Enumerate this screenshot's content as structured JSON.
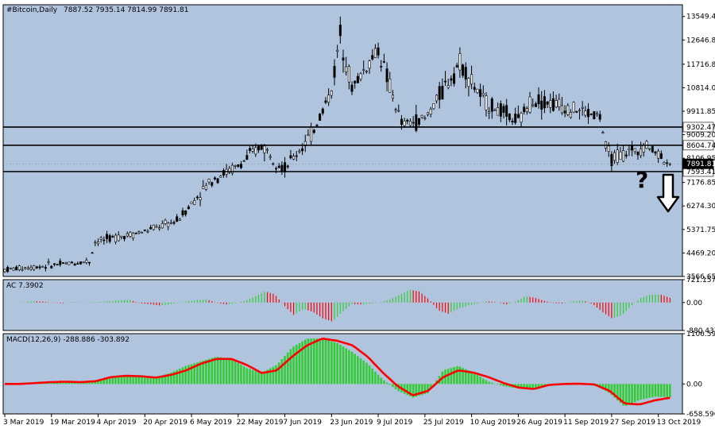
{
  "header": {
    "symbol": "#Bitcoin,Daily",
    "ohlc": "7887.52 7935.14 7814.99 7891.81"
  },
  "colors": {
    "background": "#b0c4de",
    "frame": "#ffffff",
    "candle": "#000000",
    "ac_up": "#32cd32",
    "ac_down": "#ff0000",
    "macd_hist": "#32cd32",
    "macd_signal": "#ff0000"
  },
  "annotations": {
    "question": "?",
    "arrow": "down-arrow-icon"
  },
  "chart_data": [
    {
      "type": "candlestick",
      "title": "#Bitcoin,Daily",
      "ohlc_label": "7887.52 7935.14 7814.99 7891.81",
      "ylim": [
        3566.65,
        13999
      ],
      "y_ticks": [
        "13549.40",
        "12646.85",
        "11716.85",
        "10814.04",
        "9911.85",
        "9009.20",
        "8106.95",
        "7176.85",
        "6274.30",
        "5371.75",
        "4469.20",
        "3566.65"
      ],
      "x_ticks": [
        "3 Mar 2019",
        "19 Mar 2019",
        "4 Apr 2019",
        "20 Apr 2019",
        "6 May 2019",
        "22 May 2019",
        "7 Jun 2019",
        "23 Jun 2019",
        "9 Jul 2019",
        "25 Jul 2019",
        "10 Aug 2019",
        "26 Aug 2019",
        "11 Sep 2019",
        "27 Sep 2019",
        "13 Oct 2019"
      ],
      "levels": [
        {
          "value": 9302.47,
          "label": "9302.47"
        },
        {
          "value": 8604.74,
          "label": "8604.74"
        },
        {
          "value": 7593.41,
          "label": "7593.41"
        }
      ],
      "current_price": {
        "value": 7891.81,
        "label": "7891.81"
      },
      "close_path": [
        {
          "x": "3 Mar 2019",
          "close": 3830
        },
        {
          "x": "19 Mar 2019",
          "close": 4000
        },
        {
          "x": "1 Apr 2019",
          "close": 4150
        },
        {
          "x": "3 Apr 2019",
          "close": 4900
        },
        {
          "x": "20 Apr 2019",
          "close": 5300
        },
        {
          "x": "1 May 2019",
          "close": 5700
        },
        {
          "x": "13 May 2019",
          "close": 7300
        },
        {
          "x": "22 May 2019",
          "close": 7800
        },
        {
          "x": "30 May 2019",
          "close": 8600
        },
        {
          "x": "7 Jun 2019",
          "close": 7700
        },
        {
          "x": "16 Jun 2019",
          "close": 9000
        },
        {
          "x": "23 Jun 2019",
          "close": 10700
        },
        {
          "x": "26 Jun 2019",
          "close": 12900
        },
        {
          "x": "30 Jun 2019",
          "close": 10800
        },
        {
          "x": "9 Jul 2019",
          "close": 12300
        },
        {
          "x": "17 Jul 2019",
          "close": 9400
        },
        {
          "x": "25 Jul 2019",
          "close": 9600
        },
        {
          "x": "6 Aug 2019",
          "close": 11800
        },
        {
          "x": "14 Aug 2019",
          "close": 10300
        },
        {
          "x": "26 Aug 2019",
          "close": 9500
        },
        {
          "x": "31 Aug 2019",
          "close": 10400
        },
        {
          "x": "11 Sep 2019",
          "close": 10100
        },
        {
          "x": "23 Sep 2019",
          "close": 9700
        },
        {
          "x": "25 Sep 2019",
          "close": 8500
        },
        {
          "x": "27 Sep 2019",
          "close": 8100
        },
        {
          "x": "9 Oct 2019",
          "close": 8600
        },
        {
          "x": "13 Oct 2019",
          "close": 8300
        },
        {
          "x": "17 Oct 2019",
          "close": 7891.81
        }
      ]
    },
    {
      "type": "bar",
      "title": "AC 7.3902",
      "ylim": [
        -880.4378,
        721.1579
      ],
      "y_ticks": [
        "721.1579",
        "0.00",
        "-880.4378"
      ],
      "series_shape": [
        0,
        0,
        10,
        45,
        30,
        -5,
        -20,
        15,
        -10,
        10,
        20,
        45,
        75,
        80,
        -20,
        -50,
        -90,
        -60,
        -10,
        40,
        80,
        90,
        -10,
        -60,
        -20,
        60,
        200,
        350,
        260,
        -100,
        -400,
        -200,
        -300,
        -500,
        -600,
        -300,
        -50,
        -60,
        -30,
        10,
        100,
        250,
        400,
        350,
        100,
        -250,
        -350,
        -200,
        -100,
        -30,
        40,
        10,
        -60,
        30,
        200,
        150,
        50,
        -20,
        -30,
        40,
        60,
        -50,
        -300,
        -500,
        -400,
        -100,
        150,
        250,
        250,
        150
      ]
    },
    {
      "type": "area",
      "title": "MACD(12,26,9) -288.886 -303.892",
      "ylim": [
        -658.596,
        1106.592
      ],
      "y_ticks": [
        "1106.592",
        "0.00",
        "-658.596"
      ],
      "series": [
        {
          "name": "MACD",
          "values": [
            0,
            10,
            40,
            60,
            50,
            30,
            80,
            150,
            200,
            170,
            150,
            250,
            400,
            500,
            600,
            550,
            350,
            250,
            420,
            800,
            1000,
            1000,
            900,
            700,
            450,
            100,
            -150,
            -300,
            -200,
            300,
            400,
            250,
            50,
            -50,
            -100,
            -100,
            -20,
            0,
            10,
            -20,
            -200,
            -500,
            -350,
            -280,
            -289
          ]
        },
        {
          "name": "Signal",
          "values": [
            0,
            0,
            20,
            40,
            50,
            40,
            60,
            150,
            180,
            170,
            140,
            200,
            300,
            450,
            550,
            550,
            420,
            240,
            300,
            600,
            850,
            1000,
            950,
            850,
            600,
            250,
            -50,
            -250,
            -150,
            150,
            300,
            250,
            150,
            20,
            -80,
            -110,
            -20,
            0,
            5,
            -10,
            -150,
            -430,
            -450,
            -360,
            -304
          ]
        }
      ]
    }
  ]
}
